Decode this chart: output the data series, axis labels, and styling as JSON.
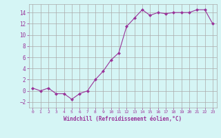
{
  "x": [
    0,
    1,
    2,
    3,
    4,
    5,
    6,
    7,
    8,
    9,
    10,
    11,
    12,
    13,
    14,
    15,
    16,
    17,
    18,
    19,
    20,
    21,
    22,
    23
  ],
  "y": [
    0.5,
    0.0,
    0.5,
    -0.5,
    -0.5,
    -1.5,
    -0.5,
    0.0,
    2.0,
    3.5,
    5.5,
    6.8,
    11.5,
    13.0,
    14.5,
    13.5,
    14.0,
    13.8,
    14.0,
    14.0,
    14.0,
    14.5,
    14.5,
    12.0
  ],
  "line_color": "#993399",
  "marker": "D",
  "marker_size": 2.0,
  "bg_color": "#d5f5f5",
  "grid_color": "#aaaaaa",
  "xlabel": "Windchill (Refroidissement éolien,°C)",
  "xlabel_color": "#993399",
  "tick_color": "#993399",
  "ylim": [
    -3,
    15.5
  ],
  "xlim": [
    -0.5,
    23.5
  ],
  "yticks": [
    -2,
    0,
    2,
    4,
    6,
    8,
    10,
    12,
    14
  ],
  "xticks": [
    0,
    1,
    2,
    3,
    4,
    5,
    6,
    7,
    8,
    9,
    10,
    11,
    12,
    13,
    14,
    15,
    16,
    17,
    18,
    19,
    20,
    21,
    22,
    23
  ]
}
